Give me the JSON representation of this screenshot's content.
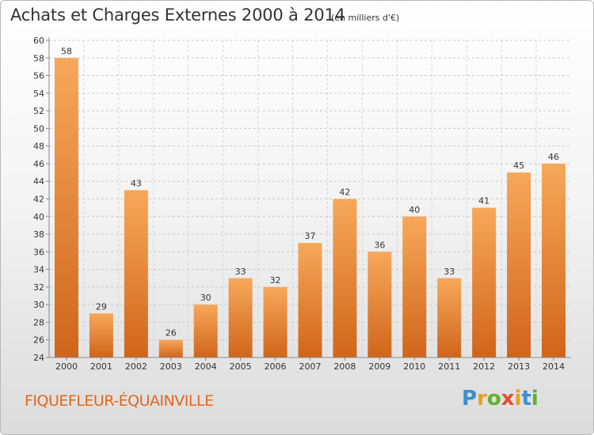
{
  "chart_data": {
    "type": "bar",
    "title": "Achats et Charges Externes 2000 à 2014",
    "subtitle": "(en milliers d'€)",
    "categories": [
      "2000",
      "2001",
      "2002",
      "2003",
      "2004",
      "2005",
      "2006",
      "2007",
      "2008",
      "2009",
      "2010",
      "2011",
      "2012",
      "2013",
      "2014"
    ],
    "values": [
      58,
      29,
      43,
      26,
      30,
      33,
      32,
      37,
      42,
      36,
      40,
      33,
      41,
      45,
      46
    ],
    "ylim": [
      24,
      60
    ],
    "yticks": [
      24,
      26,
      28,
      30,
      32,
      34,
      36,
      38,
      40,
      42,
      44,
      46,
      48,
      50,
      52,
      54,
      56,
      58,
      60
    ],
    "grid": true,
    "bar_color": "#f0903a"
  },
  "footer": {
    "place_name": "FIQUEFLEUR-ÉQUAINVILLE",
    "logo": "Proxiti"
  }
}
